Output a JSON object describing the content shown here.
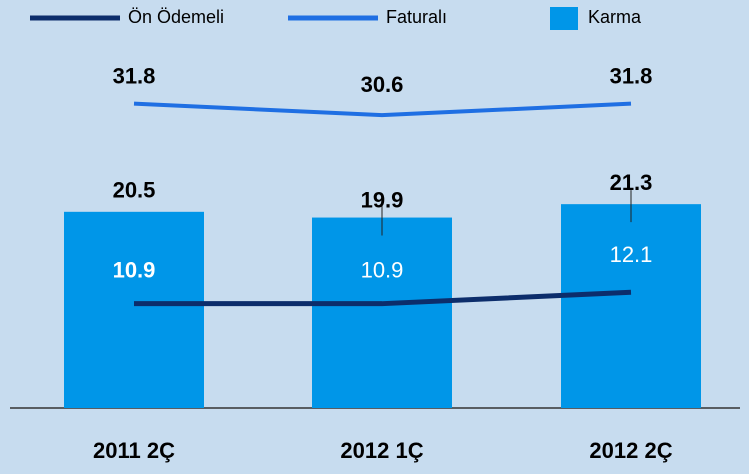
{
  "chart_data": {
    "type": "bar",
    "categories": [
      "2011 2Ç",
      "2012 1Ç",
      "2012 2Ç"
    ],
    "series": [
      {
        "name": "Ön Ödemeli",
        "type": "line",
        "color": "#0c2d6b",
        "values": [
          10.9,
          10.9,
          12.1
        ]
      },
      {
        "name": "Faturalı",
        "type": "line",
        "color": "#1f6fe3",
        "values": [
          31.8,
          30.6,
          31.8
        ]
      },
      {
        "name": "Karma",
        "type": "bar",
        "color": "#0096e8",
        "values": [
          20.5,
          19.9,
          21.3
        ]
      }
    ]
  }
}
